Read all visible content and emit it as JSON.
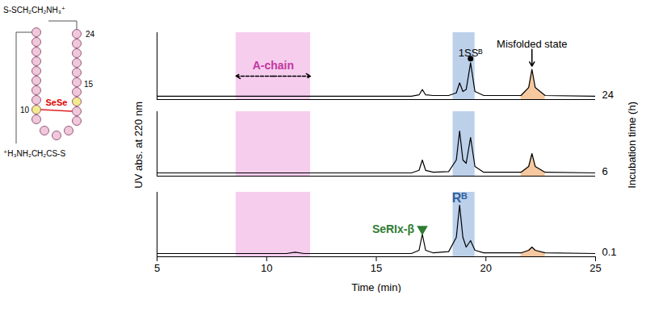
{
  "chart_data": {
    "type": "line",
    "x_label": "Time (min)",
    "y_label": "UV abs. at 220 nm",
    "series_label": "Incubation time (h)",
    "xlim": [
      5,
      25
    ],
    "xticks": [
      5,
      10,
      15,
      20,
      25
    ],
    "ylim": [
      0,
      100
    ],
    "yticks": [],
    "tick_labels": "x",
    "grid": false,
    "x": [
      5,
      8,
      10.9,
      11.3,
      11.7,
      16.6,
      16.95,
      17.1,
      17.25,
      17.6,
      18.3,
      18.65,
      18.8,
      18.95,
      19.1,
      19.3,
      19.5,
      19.9,
      21.6,
      21.95,
      22.1,
      22.25,
      22.7,
      25
    ],
    "series": [
      {
        "name": "0.1",
        "color": "#000000",
        "values": [
          5,
          5,
          5,
          7,
          5,
          5,
          10,
          35,
          10,
          6,
          8,
          30,
          80,
          30,
          15,
          25,
          10,
          6,
          6,
          10,
          15,
          10,
          6,
          5
        ]
      },
      {
        "name": "6",
        "color": "#000000",
        "values": [
          5,
          5,
          5,
          5,
          5,
          5,
          9,
          25,
          9,
          6,
          7,
          25,
          70,
          25,
          20,
          60,
          15,
          6,
          6,
          15,
          35,
          15,
          6,
          5
        ]
      },
      {
        "name": "24",
        "color": "#000000",
        "values": [
          5,
          5,
          5,
          5,
          5,
          5,
          7,
          15,
          7,
          6,
          6,
          10,
          25,
          12,
          15,
          55,
          12,
          6,
          6,
          18,
          45,
          18,
          6,
          5
        ]
      }
    ],
    "regions": [
      {
        "type": "band",
        "xlim": [
          8.6,
          12.0
        ],
        "color": "#f7cdee"
      },
      {
        "type": "band",
        "xlim": [
          18.5,
          19.5
        ],
        "color": "#bcd0ea"
      },
      {
        "type": "area",
        "xlim": [
          21.6,
          22.7
        ],
        "color": "#f6c8a0"
      }
    ],
    "annotations": [
      {
        "text": "A-chain",
        "series": "24",
        "xlim": [
          8.6,
          12.0
        ],
        "color": "#c2389f",
        "marker": "double_arrow"
      },
      {
        "text": "SeRIx-β",
        "series": "0.1",
        "x": 17.1,
        "color": "#2e7d32",
        "marker": "triangle"
      },
      {
        "text": "Rᴮ",
        "series": "0.1",
        "x": 18.8,
        "color": "#2f5f9e",
        "marker": "none"
      },
      {
        "text": "1SSᴮ",
        "series": "24",
        "x": 19.3,
        "color": "#000000",
        "marker": "dot"
      },
      {
        "text": "Misfolded state",
        "series": "24",
        "x": 22.1,
        "color": "#000000",
        "marker": "arrow"
      }
    ],
    "inset": {
      "top_residue": "24",
      "residue_a": "10",
      "residue_b": "15",
      "bridge": "SeSe",
      "top_end": "S-SCH₂CH₂NH₃⁺",
      "left_end": "⁺H₃NH₂CH₂CS-S"
    }
  }
}
